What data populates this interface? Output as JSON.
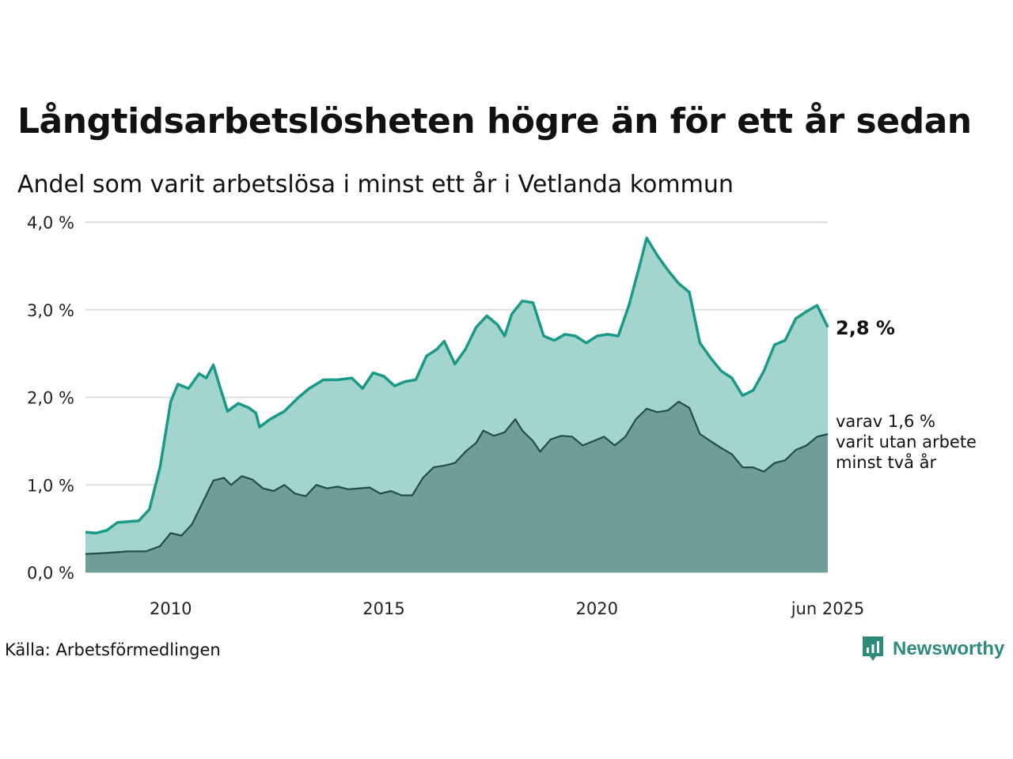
{
  "title": "Långtidsarbetslösheten högre än för ett år sedan",
  "subtitle": "Andel som varit arbetslösa i minst ett år i Vetlanda kommun",
  "source": "Källa: Arbetsförmedlingen",
  "brand": "Newsworthy",
  "colors": {
    "line_total": "#1a9a86",
    "fill_total": "#a3d4ce",
    "line_long": "#1f4f46",
    "fill_long": "#6f9e97",
    "grid": "#dddddd",
    "brand": "#2e8b7a"
  },
  "chart_data": {
    "type": "area",
    "x_range": [
      "2008-01",
      "2025-06"
    ],
    "ylim": [
      0,
      4
    ],
    "y_ticks": [
      "0,0 %",
      "1,0 %",
      "2,0 %",
      "3,0 %",
      "4,0 %"
    ],
    "x_ticks": [
      {
        "label": "2010",
        "x": "2010-01"
      },
      {
        "label": "2015",
        "x": "2015-01"
      },
      {
        "label": "2020",
        "x": "2020-01"
      },
      {
        "label": "jun 2025",
        "x": "2025-06"
      }
    ],
    "grid": true,
    "annotations": {
      "last_value": "2,8 %",
      "long_label_lines": [
        "varav 1,6 %",
        "varit utan arbete",
        "minst två år"
      ]
    },
    "series": [
      {
        "key": "total",
        "points": [
          [
            "2008-01",
            0.46
          ],
          [
            "2008-04",
            0.45
          ],
          [
            "2008-07",
            0.48
          ],
          [
            "2008-10",
            0.57
          ],
          [
            "2009-01",
            0.58
          ],
          [
            "2009-04",
            0.59
          ],
          [
            "2009-07",
            0.72
          ],
          [
            "2009-10",
            1.2
          ],
          [
            "2010-01",
            1.95
          ],
          [
            "2010-03",
            2.15
          ],
          [
            "2010-06",
            2.1
          ],
          [
            "2010-09",
            2.27
          ],
          [
            "2010-11",
            2.22
          ],
          [
            "2011-01",
            2.37
          ],
          [
            "2011-03",
            2.1
          ],
          [
            "2011-05",
            1.84
          ],
          [
            "2011-08",
            1.93
          ],
          [
            "2011-11",
            1.88
          ],
          [
            "2012-01",
            1.82
          ],
          [
            "2012-02",
            1.66
          ],
          [
            "2012-05",
            1.75
          ],
          [
            "2012-09",
            1.84
          ],
          [
            "2013-01",
            2.0
          ],
          [
            "2013-04",
            2.1
          ],
          [
            "2013-08",
            2.2
          ],
          [
            "2013-12",
            2.2
          ],
          [
            "2014-04",
            2.22
          ],
          [
            "2014-07",
            2.1
          ],
          [
            "2014-10",
            2.28
          ],
          [
            "2015-01",
            2.24
          ],
          [
            "2015-04",
            2.13
          ],
          [
            "2015-07",
            2.18
          ],
          [
            "2015-10",
            2.2
          ],
          [
            "2016-01",
            2.47
          ],
          [
            "2016-04",
            2.55
          ],
          [
            "2016-06",
            2.64
          ],
          [
            "2016-09",
            2.38
          ],
          [
            "2016-12",
            2.55
          ],
          [
            "2017-03",
            2.8
          ],
          [
            "2017-06",
            2.93
          ],
          [
            "2017-09",
            2.83
          ],
          [
            "2017-11",
            2.7
          ],
          [
            "2018-01",
            2.95
          ],
          [
            "2018-04",
            3.1
          ],
          [
            "2018-07",
            3.08
          ],
          [
            "2018-10",
            2.7
          ],
          [
            "2019-01",
            2.65
          ],
          [
            "2019-04",
            2.72
          ],
          [
            "2019-07",
            2.7
          ],
          [
            "2019-10",
            2.62
          ],
          [
            "2020-01",
            2.7
          ],
          [
            "2020-04",
            2.72
          ],
          [
            "2020-07",
            2.7
          ],
          [
            "2020-10",
            3.05
          ],
          [
            "2021-01",
            3.5
          ],
          [
            "2021-03",
            3.82
          ],
          [
            "2021-06",
            3.62
          ],
          [
            "2021-09",
            3.45
          ],
          [
            "2021-12",
            3.3
          ],
          [
            "2022-03",
            3.2
          ],
          [
            "2022-06",
            2.62
          ],
          [
            "2022-09",
            2.45
          ],
          [
            "2022-12",
            2.3
          ],
          [
            "2023-03",
            2.22
          ],
          [
            "2023-06",
            2.02
          ],
          [
            "2023-09",
            2.08
          ],
          [
            "2023-12",
            2.3
          ],
          [
            "2024-03",
            2.6
          ],
          [
            "2024-06",
            2.65
          ],
          [
            "2024-09",
            2.9
          ],
          [
            "2024-12",
            2.98
          ],
          [
            "2025-03",
            3.05
          ],
          [
            "2025-06",
            2.8
          ]
        ]
      },
      {
        "key": "long",
        "points": [
          [
            "2008-01",
            0.21
          ],
          [
            "2008-06",
            0.22
          ],
          [
            "2009-01",
            0.24
          ],
          [
            "2009-06",
            0.24
          ],
          [
            "2009-10",
            0.3
          ],
          [
            "2010-01",
            0.45
          ],
          [
            "2010-04",
            0.42
          ],
          [
            "2010-07",
            0.55
          ],
          [
            "2010-10",
            0.8
          ],
          [
            "2011-01",
            1.05
          ],
          [
            "2011-04",
            1.08
          ],
          [
            "2011-06",
            1.0
          ],
          [
            "2011-09",
            1.1
          ],
          [
            "2011-12",
            1.06
          ],
          [
            "2012-03",
            0.96
          ],
          [
            "2012-06",
            0.93
          ],
          [
            "2012-09",
            1.0
          ],
          [
            "2012-12",
            0.9
          ],
          [
            "2013-03",
            0.87
          ],
          [
            "2013-06",
            1.0
          ],
          [
            "2013-09",
            0.96
          ],
          [
            "2013-12",
            0.98
          ],
          [
            "2014-03",
            0.95
          ],
          [
            "2014-06",
            0.96
          ],
          [
            "2014-09",
            0.97
          ],
          [
            "2014-12",
            0.9
          ],
          [
            "2015-03",
            0.93
          ],
          [
            "2015-06",
            0.88
          ],
          [
            "2015-09",
            0.88
          ],
          [
            "2015-12",
            1.08
          ],
          [
            "2016-03",
            1.2
          ],
          [
            "2016-06",
            1.22
          ],
          [
            "2016-09",
            1.25
          ],
          [
            "2016-12",
            1.38
          ],
          [
            "2017-03",
            1.48
          ],
          [
            "2017-05",
            1.62
          ],
          [
            "2017-08",
            1.56
          ],
          [
            "2017-11",
            1.6
          ],
          [
            "2018-02",
            1.75
          ],
          [
            "2018-04",
            1.62
          ],
          [
            "2018-07",
            1.5
          ],
          [
            "2018-09",
            1.38
          ],
          [
            "2018-12",
            1.52
          ],
          [
            "2019-03",
            1.56
          ],
          [
            "2019-06",
            1.55
          ],
          [
            "2019-09",
            1.45
          ],
          [
            "2019-12",
            1.5
          ],
          [
            "2020-03",
            1.55
          ],
          [
            "2020-06",
            1.45
          ],
          [
            "2020-09",
            1.55
          ],
          [
            "2020-12",
            1.75
          ],
          [
            "2021-03",
            1.87
          ],
          [
            "2021-06",
            1.83
          ],
          [
            "2021-09",
            1.85
          ],
          [
            "2021-12",
            1.95
          ],
          [
            "2022-03",
            1.88
          ],
          [
            "2022-06",
            1.58
          ],
          [
            "2022-09",
            1.5
          ],
          [
            "2022-12",
            1.42
          ],
          [
            "2023-03",
            1.35
          ],
          [
            "2023-06",
            1.2
          ],
          [
            "2023-09",
            1.2
          ],
          [
            "2023-12",
            1.15
          ],
          [
            "2024-03",
            1.25
          ],
          [
            "2024-06",
            1.28
          ],
          [
            "2024-09",
            1.4
          ],
          [
            "2024-12",
            1.45
          ],
          [
            "2025-03",
            1.55
          ],
          [
            "2025-06",
            1.58
          ]
        ]
      }
    ]
  }
}
